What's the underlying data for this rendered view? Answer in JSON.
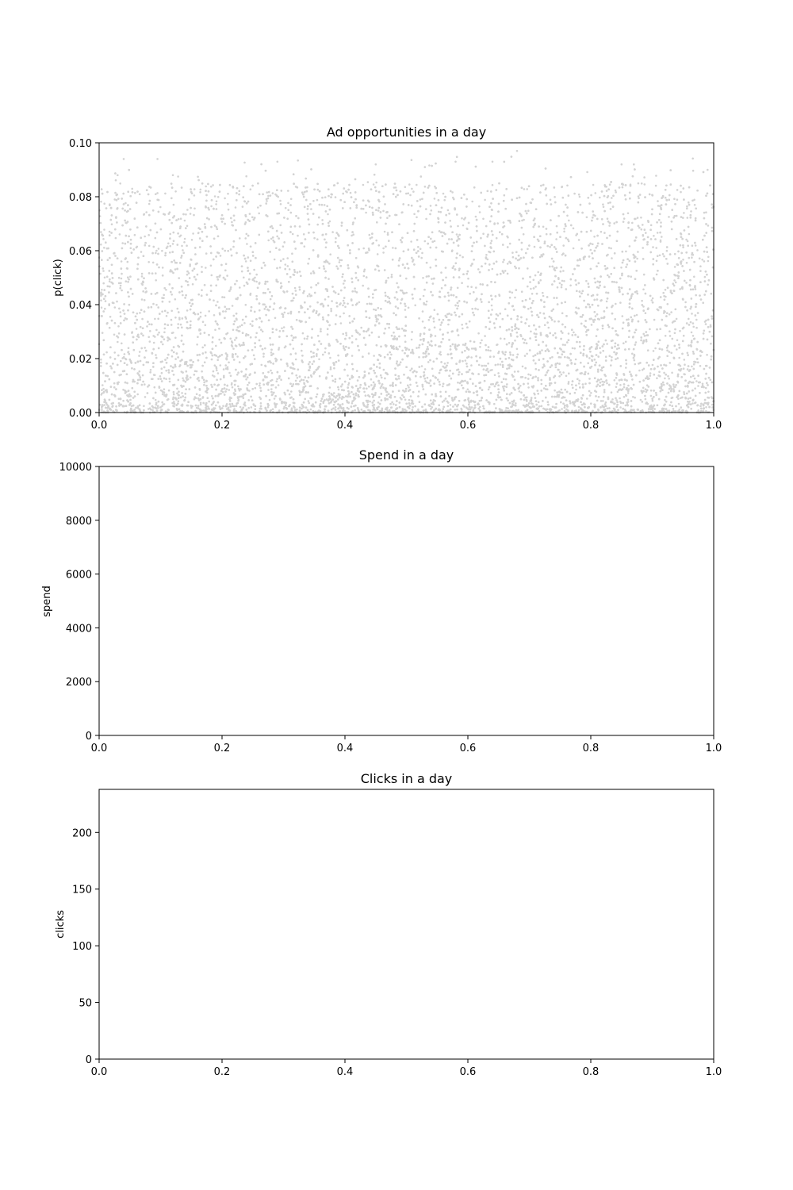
{
  "chart_data": [
    {
      "type": "scatter",
      "title": "Ad opportunities in a day",
      "xlabel": "",
      "ylabel": "p(click)",
      "xlim": [
        0.0,
        1.0
      ],
      "ylim": [
        0.0,
        0.1
      ],
      "xticks": [
        "0.0",
        "0.2",
        "0.4",
        "0.6",
        "0.8",
        "1.0"
      ],
      "yticks": [
        "0.00",
        "0.02",
        "0.04",
        "0.06",
        "0.08",
        "0.10"
      ],
      "point_color": "#d3d3d3",
      "grid": false,
      "legend": "none",
      "series": [
        {
          "distribution": {
            "count": 9000,
            "x_range": [
              0.0,
              1.0
            ],
            "y_shape": "skewed toward 0, density decreasing with p(click)",
            "y_max_observed": 0.097
          },
          "samples": [
            [
              0.04,
              0.094
            ],
            [
              0.095,
              0.094
            ],
            [
              0.29,
              0.093
            ],
            [
              0.58,
              0.093
            ],
            [
              0.64,
              0.093
            ],
            [
              0.68,
              0.097
            ],
            [
              0.85,
              0.092
            ],
            [
              0.87,
              0.092
            ],
            [
              0.99,
              0.09
            ],
            [
              0.03,
              0.088
            ],
            [
              0.12,
              0.088
            ],
            [
              0.45,
              0.092
            ],
            [
              0.53,
              0.091
            ]
          ]
        }
      ]
    },
    {
      "type": "line",
      "title": "Spend in a day",
      "xlabel": "",
      "ylabel": "spend",
      "xlim": [
        0.0,
        1.0
      ],
      "ylim": [
        0,
        10000
      ],
      "xticks": [
        "0.0",
        "0.2",
        "0.4",
        "0.6",
        "0.8",
        "1.0"
      ],
      "yticks": [
        "0",
        "2000",
        "4000",
        "6000",
        "8000",
        "10000"
      ],
      "grid": false,
      "legend": "none",
      "series": []
    },
    {
      "type": "line",
      "title": "Clicks in a day",
      "xlabel": "",
      "ylabel": "clicks",
      "xlim": [
        0.0,
        1.0
      ],
      "ylim": [
        0,
        238
      ],
      "xticks": [
        "0.0",
        "0.2",
        "0.4",
        "0.6",
        "0.8",
        "1.0"
      ],
      "yticks": [
        "0",
        "50",
        "100",
        "150",
        "200"
      ],
      "grid": false,
      "legend": "none",
      "series": []
    }
  ]
}
